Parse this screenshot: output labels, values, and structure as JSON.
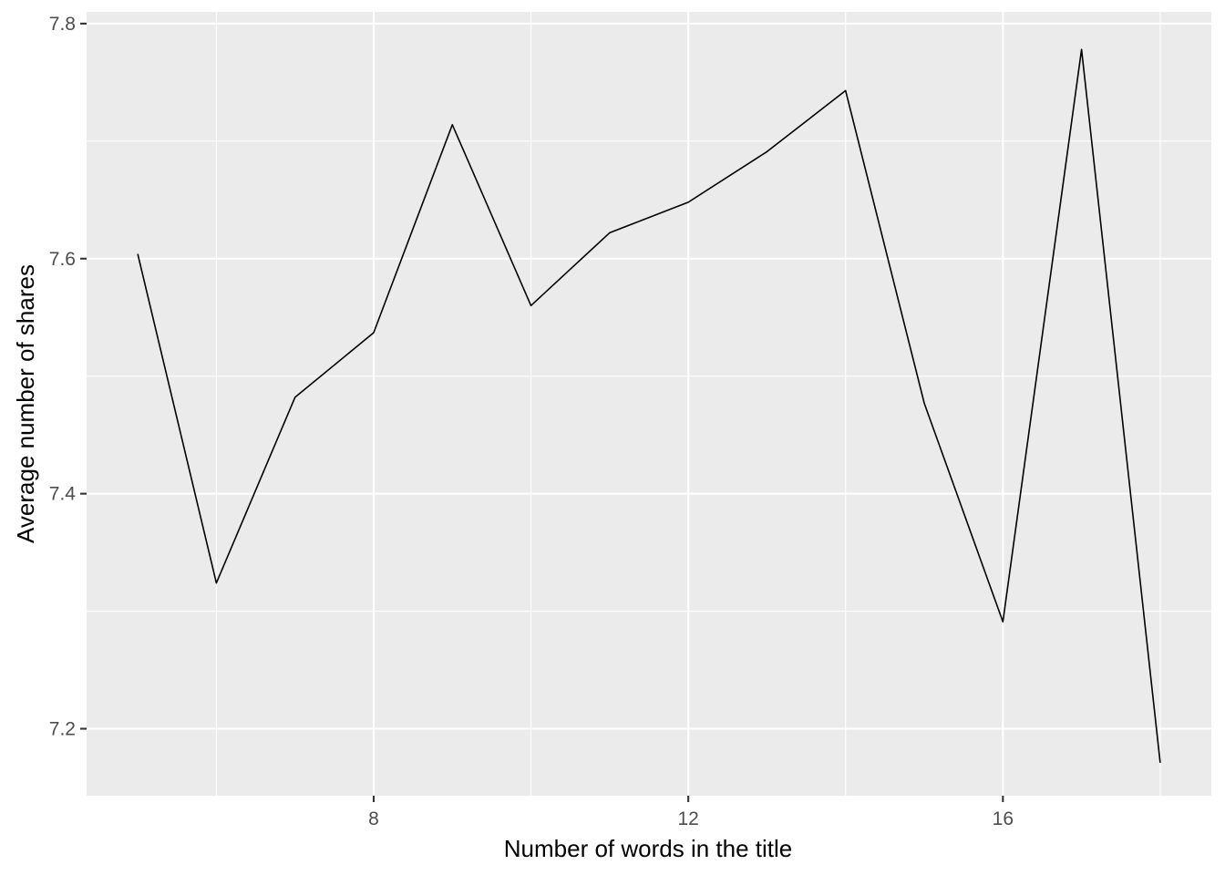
{
  "chart_data": {
    "type": "line",
    "xlabel": "Number of words in the title",
    "ylabel": "Average number of shares",
    "x_ticks": [
      8,
      12,
      16
    ],
    "x_tick_labels": [
      "8",
      "12",
      "16"
    ],
    "y_ticks": [
      7.2,
      7.4,
      7.6,
      7.8
    ],
    "y_tick_labels": [
      "7.2",
      "7.4",
      "7.6",
      "7.8"
    ],
    "xlim": [
      4.35,
      18.65
    ],
    "ylim": [
      7.143,
      7.81
    ],
    "grid": true,
    "line_color": "#000000",
    "panel_color": "#EBEBEB",
    "series": [
      {
        "x": [
          5,
          6,
          7,
          8,
          9,
          10,
          11,
          12,
          13,
          14,
          15,
          16,
          17,
          18
        ],
        "values": [
          7.604,
          7.324,
          7.482,
          7.537,
          7.714,
          7.56,
          7.622,
          7.648,
          7.691,
          7.743,
          7.477,
          7.291,
          7.778,
          7.171
        ]
      }
    ]
  }
}
